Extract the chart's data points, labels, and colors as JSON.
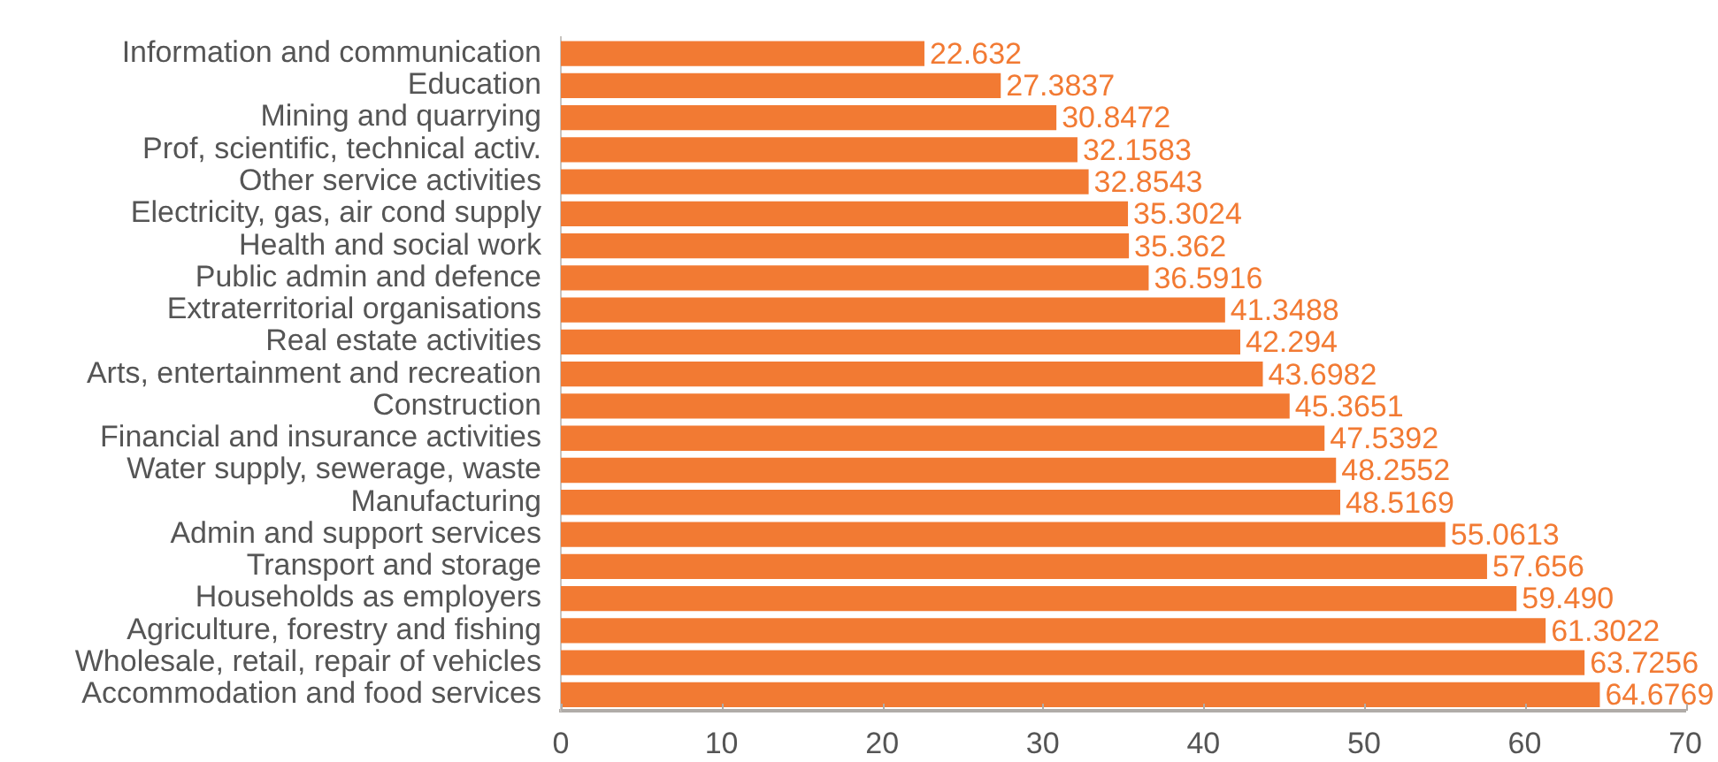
{
  "chart_data": {
    "type": "bar",
    "orientation": "horizontal",
    "categories": [
      "Information and communication",
      "Education",
      "Mining and quarrying",
      "Prof, scientific, technical activ.",
      "Other service activities",
      "Electricity, gas, air cond supply",
      "Health and social work",
      "Public admin and defence",
      "Extraterritorial organisations",
      "Real estate activities",
      "Arts, entertainment and recreation",
      "Construction",
      "Financial and insurance activities",
      "Water supply, sewerage, waste",
      "Manufacturing",
      "Admin and support services",
      "Transport and storage",
      "Households as employers",
      "Agriculture, forestry and fishing",
      "Wholesale, retail, repair of vehicles",
      "Accommodation and food services"
    ],
    "values": [
      22.632,
      27.3837,
      30.8472,
      32.1583,
      32.8543,
      35.3024,
      35.362,
      36.5916,
      41.3488,
      42.294,
      43.6982,
      45.3651,
      47.5392,
      48.2552,
      48.5169,
      55.0613,
      57.656,
      59.49,
      61.3022,
      63.7256,
      64.6769
    ],
    "value_labels": [
      "22.632",
      "27.3837",
      "30.8472",
      "32.1583",
      "32.8543",
      "35.3024",
      "35.362",
      "36.5916",
      "41.3488",
      "42.294",
      "43.6982",
      "45.3651",
      "47.5392",
      "48.2552",
      "48.5169",
      "55.0613",
      "57.656",
      "59.490",
      "61.3022",
      "63.7256",
      "64.6769"
    ],
    "color": "#f27a33",
    "xlim": [
      0,
      70
    ],
    "xticks": [
      0,
      10,
      20,
      30,
      40,
      50,
      60,
      70
    ]
  }
}
